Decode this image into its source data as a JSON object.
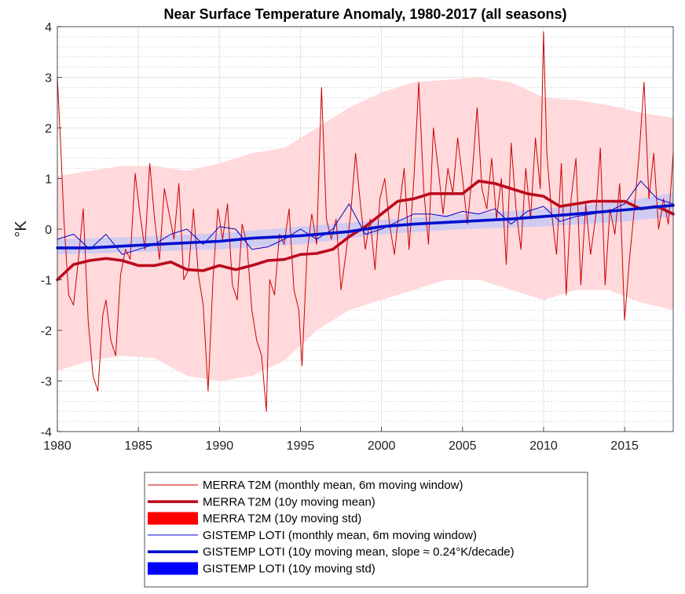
{
  "chart_data": {
    "type": "line",
    "title": "Near Surface Temperature Anomaly, 1980-2017 (all seasons)",
    "xlabel": "",
    "ylabel": "°K",
    "xlim": [
      1980,
      2018
    ],
    "ylim": [
      -4,
      4
    ],
    "x_ticks": [
      1980,
      1985,
      1990,
      1995,
      2000,
      2005,
      2010,
      2015
    ],
    "y_ticks": [
      -4,
      -3,
      -2,
      -1,
      0,
      1,
      2,
      3,
      4
    ],
    "grid": true,
    "minor_grid": true,
    "legend_position": "bottom-center (outside)",
    "colors": {
      "merra_line": "#cc0000",
      "merra_mean": "#bb0a1e",
      "merra_band": "#ffd9dc",
      "merra_legend_patch": "#ff0000",
      "gistemp_line": "#0000cc",
      "gistemp_mean": "#0010cc",
      "gistemp_band": "#c8c8f5",
      "gistemp_legend_patch": "#0000ff"
    },
    "series": [
      {
        "name": "MERRA T2M (monthly mean, 6m moving window)",
        "style": "thin-line",
        "x": [
          1980.0,
          1980.2,
          1980.4,
          1980.7,
          1981.0,
          1981.3,
          1981.6,
          1981.9,
          1982.2,
          1982.5,
          1982.8,
          1983.0,
          1983.3,
          1983.6,
          1983.9,
          1984.2,
          1984.5,
          1984.8,
          1985.1,
          1985.4,
          1985.7,
          1986.0,
          1986.3,
          1986.6,
          1986.9,
          1987.2,
          1987.5,
          1987.8,
          1988.1,
          1988.4,
          1988.7,
          1989.0,
          1989.3,
          1989.6,
          1989.9,
          1990.2,
          1990.5,
          1990.8,
          1991.1,
          1991.4,
          1991.7,
          1992.0,
          1992.3,
          1992.6,
          1992.9,
          1993.1,
          1993.4,
          1993.7,
          1994.0,
          1994.3,
          1994.6,
          1994.9,
          1995.1,
          1995.4,
          1995.7,
          1996.0,
          1996.3,
          1996.6,
          1996.9,
          1997.2,
          1997.5,
          1997.8,
          1998.1,
          1998.4,
          1998.7,
          1999.0,
          1999.3,
          1999.6,
          1999.9,
          2000.2,
          2000.5,
          2000.8,
          2001.1,
          2001.4,
          2001.7,
          2002.0,
          2002.3,
          2002.6,
          2002.9,
          2003.2,
          2003.5,
          2003.8,
          2004.1,
          2004.4,
          2004.7,
          2005.0,
          2005.3,
          2005.6,
          2005.9,
          2006.2,
          2006.5,
          2006.8,
          2007.1,
          2007.4,
          2007.7,
          2008.0,
          2008.3,
          2008.6,
          2008.9,
          2009.2,
          2009.5,
          2009.8,
          2010.0,
          2010.2,
          2010.5,
          2010.8,
          2011.1,
          2011.4,
          2011.7,
          2012.0,
          2012.3,
          2012.6,
          2012.9,
          2013.2,
          2013.5,
          2013.8,
          2014.1,
          2014.4,
          2014.7,
          2015.0,
          2015.3,
          2015.6,
          2015.9,
          2016.2,
          2016.5,
          2016.8,
          2017.1,
          2017.4,
          2017.7,
          2018.0
        ],
        "values": [
          3.0,
          1.7,
          0.2,
          -1.3,
          -1.5,
          -0.6,
          0.4,
          -1.8,
          -2.9,
          -3.2,
          -1.7,
          -1.4,
          -2.2,
          -2.5,
          -0.9,
          -0.4,
          -0.6,
          1.1,
          0.3,
          -0.4,
          1.3,
          0.2,
          -0.6,
          0.8,
          0.3,
          -0.2,
          0.9,
          -1.0,
          -0.8,
          0.4,
          -0.9,
          -1.5,
          -3.2,
          -1.0,
          0.4,
          -0.2,
          0.5,
          -1.1,
          -1.4,
          0.1,
          -0.3,
          -1.6,
          -2.2,
          -2.5,
          -3.6,
          -1.0,
          -1.3,
          -0.1,
          -0.3,
          0.4,
          -1.2,
          -1.6,
          -2.7,
          -0.5,
          0.3,
          -0.3,
          2.8,
          0.2,
          -0.2,
          0.2,
          -1.2,
          -0.5,
          0.3,
          1.5,
          0.5,
          -0.4,
          0.2,
          -0.8,
          0.6,
          1.0,
          0.1,
          -0.5,
          0.4,
          1.2,
          -0.4,
          1.0,
          2.9,
          0.8,
          -0.3,
          2.0,
          1.2,
          0.3,
          1.2,
          0.7,
          1.8,
          1.0,
          0.1,
          1.1,
          2.4,
          0.8,
          0.4,
          1.4,
          0.2,
          1.0,
          -0.7,
          1.7,
          0.4,
          -0.4,
          1.2,
          0.2,
          1.8,
          0.8,
          3.9,
          1.5,
          0.3,
          -0.5,
          1.3,
          -1.3,
          0.6,
          1.4,
          -1.1,
          0.5,
          -0.5,
          0.2,
          1.6,
          -1.1,
          0.4,
          -0.1,
          0.9,
          -1.8,
          -0.6,
          0.4,
          1.5,
          2.9,
          0.6,
          1.5,
          0.0,
          0.6,
          0.1,
          1.5
        ]
      },
      {
        "name": "MERRA T2M (10y moving mean)",
        "style": "thick-line",
        "x": [
          1980,
          1981,
          1982,
          1983,
          1984,
          1985,
          1986,
          1987,
          1988,
          1989,
          1990,
          1991,
          1992,
          1993,
          1994,
          1995,
          1996,
          1997,
          1998,
          1999,
          2000,
          2001,
          2002,
          2003,
          2004,
          2005,
          2006,
          2007,
          2008,
          2009,
          2010,
          2011,
          2012,
          2013,
          2014,
          2015,
          2016,
          2017,
          2018
        ],
        "values": [
          -1.0,
          -0.7,
          -0.62,
          -0.58,
          -0.62,
          -0.72,
          -0.72,
          -0.65,
          -0.8,
          -0.82,
          -0.72,
          -0.8,
          -0.72,
          -0.62,
          -0.6,
          -0.5,
          -0.48,
          -0.4,
          -0.15,
          0.05,
          0.3,
          0.55,
          0.6,
          0.7,
          0.7,
          0.7,
          0.95,
          0.9,
          0.8,
          0.7,
          0.65,
          0.45,
          0.5,
          0.55,
          0.55,
          0.55,
          0.4,
          0.45,
          0.3
        ]
      },
      {
        "name": "MERRA T2M (10y moving std)",
        "style": "band",
        "x": [
          1980,
          1982,
          1984,
          1986,
          1988,
          1990,
          1992,
          1994,
          1996,
          1998,
          2000,
          2002,
          2004,
          2006,
          2008,
          2010,
          2012,
          2014,
          2016,
          2018
        ],
        "lower": [
          -2.8,
          -2.6,
          -2.5,
          -2.55,
          -2.9,
          -3.0,
          -2.9,
          -2.6,
          -2.0,
          -1.6,
          -1.4,
          -1.2,
          -1.0,
          -1.0,
          -1.2,
          -1.4,
          -1.2,
          -1.2,
          -1.45,
          -1.6
        ],
        "upper": [
          1.05,
          1.15,
          1.25,
          1.25,
          1.15,
          1.3,
          1.5,
          1.6,
          2.0,
          2.4,
          2.7,
          2.9,
          2.95,
          3.0,
          2.9,
          2.6,
          2.55,
          2.45,
          2.3,
          2.2
        ]
      },
      {
        "name": "GISTEMP LOTI (monthly mean, 6m moving window)",
        "style": "thin-line",
        "x": [
          1980,
          1981,
          1982,
          1983,
          1984,
          1985,
          1986,
          1987,
          1988,
          1989,
          1990,
          1991,
          1992,
          1993,
          1994,
          1995,
          1996,
          1997,
          1998,
          1999,
          2000,
          2001,
          2002,
          2003,
          2004,
          2005,
          2006,
          2007,
          2008,
          2009,
          2010,
          2011,
          2012,
          2013,
          2014,
          2015,
          2016,
          2017,
          2018
        ],
        "values": [
          -0.2,
          -0.1,
          -0.4,
          -0.1,
          -0.5,
          -0.4,
          -0.3,
          -0.1,
          0.0,
          -0.3,
          0.05,
          0.0,
          -0.4,
          -0.35,
          -0.2,
          0.0,
          -0.2,
          0.0,
          0.5,
          -0.1,
          0.0,
          0.15,
          0.3,
          0.3,
          0.25,
          0.35,
          0.3,
          0.4,
          0.1,
          0.35,
          0.45,
          0.15,
          0.25,
          0.3,
          0.35,
          0.5,
          0.95,
          0.6,
          0.5
        ]
      },
      {
        "name": "GISTEMP LOTI (10y moving mean, slope ≈ 0.24°K/decade)",
        "style": "thick-line",
        "x": [
          1980,
          1982,
          1985,
          1988,
          1990,
          1992,
          1995,
          1998,
          2000,
          2002,
          2005,
          2008,
          2010,
          2012,
          2015,
          2018
        ],
        "values": [
          -0.37,
          -0.37,
          -0.32,
          -0.27,
          -0.24,
          -0.18,
          -0.13,
          -0.05,
          0.05,
          0.1,
          0.15,
          0.2,
          0.25,
          0.3,
          0.38,
          0.47
        ]
      },
      {
        "name": "GISTEMP LOTI (10y moving std)",
        "style": "band",
        "x": [
          1980,
          1985,
          1990,
          1995,
          2000,
          2005,
          2010,
          2015,
          2018
        ],
        "lower": [
          -0.5,
          -0.45,
          -0.4,
          -0.3,
          -0.1,
          0.0,
          0.05,
          0.15,
          0.25
        ],
        "upper": [
          -0.2,
          -0.15,
          -0.08,
          0.05,
          0.18,
          0.3,
          0.4,
          0.55,
          0.72
        ]
      }
    ]
  }
}
